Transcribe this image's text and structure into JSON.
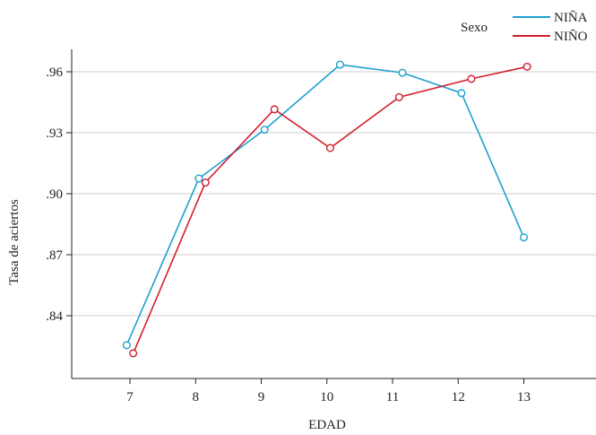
{
  "chart_data": {
    "type": "line",
    "xlabel": "EDAD",
    "ylabel": "Tasa de aciertos",
    "categories": [
      "7",
      "8",
      "9",
      "10",
      "11",
      "12",
      "13"
    ],
    "x": [
      7,
      8,
      9,
      10,
      11,
      12,
      13
    ],
    "y_ticks": [
      ".84",
      ".87",
      ".90",
      ".93",
      ".96"
    ],
    "y_tick_values": [
      0.84,
      0.87,
      0.9,
      0.93,
      0.96
    ],
    "ylim": [
      0.815,
      0.975
    ],
    "xlim": [
      6.2,
      14.1
    ],
    "grid": "horizontal",
    "legend": {
      "title": "Sexo",
      "position": "top-right"
    },
    "series": [
      {
        "name": "NIÑA",
        "color": "#1ea0d0",
        "x": [
          6.95,
          8.05,
          9.05,
          10.2,
          11.15,
          12.05,
          13.0
        ],
        "values": [
          0.8255,
          0.9075,
          0.9315,
          0.9635,
          0.9595,
          0.9495,
          0.8785
        ]
      },
      {
        "name": "NIÑO",
        "color": "#d21e2d",
        "x": [
          7.05,
          8.15,
          9.2,
          10.05,
          11.1,
          12.2,
          13.05
        ],
        "values": [
          0.8215,
          0.9055,
          0.9415,
          0.9225,
          0.9475,
          0.9565,
          0.9625
        ]
      }
    ]
  }
}
